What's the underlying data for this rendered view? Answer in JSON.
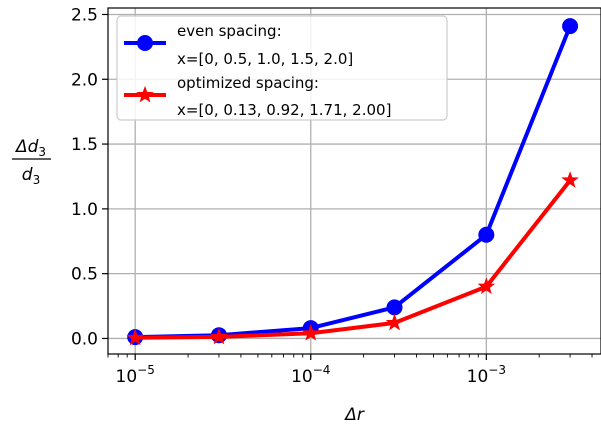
{
  "chart_data": {
    "type": "line",
    "xscale": "log",
    "xlim": [
      7e-06,
      0.0045
    ],
    "ylim": [
      -0.12,
      2.55
    ],
    "xlabel": "Δr",
    "ylabel": {
      "numerator": "Δd",
      "denominator": "d",
      "subscript": "3"
    },
    "xticks": [
      {
        "value": 1e-05,
        "base": "10",
        "exp": "−5"
      },
      {
        "value": 0.0001,
        "base": "10",
        "exp": "−4"
      },
      {
        "value": 0.001,
        "base": "10",
        "exp": "−3"
      }
    ],
    "yticks": [
      {
        "value": 0.0,
        "label": "0.0"
      },
      {
        "value": 0.5,
        "label": "0.5"
      },
      {
        "value": 1.0,
        "label": "1.0"
      },
      {
        "value": 1.5,
        "label": "1.5"
      },
      {
        "value": 2.0,
        "label": "2.0"
      },
      {
        "value": 2.5,
        "label": "2.5"
      }
    ],
    "grid": true,
    "legend_position": "top-left",
    "series": [
      {
        "name": "even spacing:",
        "name_line2": "x=[0,  0.5,  1.0,  1.5,  2.0]",
        "color": "#0000ff",
        "marker": "circle",
        "x": [
          1e-05,
          3e-05,
          0.0001,
          0.0003,
          0.001,
          0.003
        ],
        "y": [
          0.01,
          0.025,
          0.08,
          0.24,
          0.8,
          2.41
        ]
      },
      {
        "name": "optimized spacing:",
        "name_line2": "x=[0, 0.13, 0.92, 1.71, 2.00]",
        "color": "#ff0000",
        "marker": "star",
        "x": [
          1e-05,
          3e-05,
          0.0001,
          0.0003,
          0.001,
          0.003
        ],
        "y": [
          0.005,
          0.012,
          0.04,
          0.12,
          0.4,
          1.22
        ]
      }
    ]
  }
}
